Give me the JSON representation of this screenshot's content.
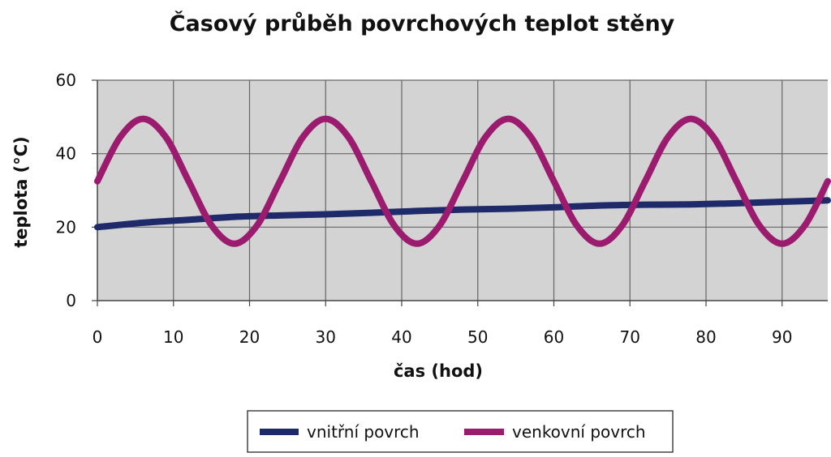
{
  "chart_data": {
    "type": "line",
    "title": "Časový průběh povrchových teplot stěny",
    "xlabel": "čas (hod)",
    "ylabel": "teplota (°C)",
    "xlim": [
      0,
      96
    ],
    "ylim": [
      0,
      60
    ],
    "x_ticks": [
      0,
      10,
      20,
      30,
      40,
      50,
      60,
      70,
      80,
      90
    ],
    "y_ticks": [
      0,
      20,
      40,
      60
    ],
    "grid": true,
    "legend_position": "bottom",
    "plot_background": "#d3d3d3",
    "series": [
      {
        "name": "vnitřní povrch",
        "color": "#1f2a6b",
        "x": [
          0,
          6,
          12,
          18,
          24,
          30,
          36,
          42,
          48,
          54,
          60,
          66,
          72,
          78,
          84,
          90,
          96
        ],
        "y": [
          20,
          21.2,
          22,
          22.8,
          23.2,
          23.5,
          23.9,
          24.4,
          24.8,
          25,
          25.4,
          25.9,
          26.1,
          26.2,
          26.5,
          26.9,
          27.3
        ]
      },
      {
        "name": "venkovní povrch",
        "color": "#9b1b6e",
        "x": [
          0,
          3,
          6,
          9,
          12,
          15,
          18,
          21,
          24,
          27,
          30,
          33,
          36,
          39,
          42,
          45,
          48,
          51,
          54,
          57,
          60,
          63,
          66,
          69,
          72,
          75,
          78,
          81,
          84,
          87,
          90,
          93,
          96
        ],
        "y": [
          32.5,
          44.5,
          49.5,
          44.5,
          32.5,
          20.5,
          15.5,
          20.5,
          32.5,
          44.5,
          49.5,
          44.5,
          32.5,
          20.5,
          15.5,
          20.5,
          32.5,
          44.5,
          49.5,
          44.5,
          32.5,
          20.5,
          15.5,
          20.5,
          32.5,
          44.5,
          49.5,
          44.5,
          32.5,
          20.5,
          15.5,
          20.5,
          32.5
        ]
      }
    ]
  }
}
